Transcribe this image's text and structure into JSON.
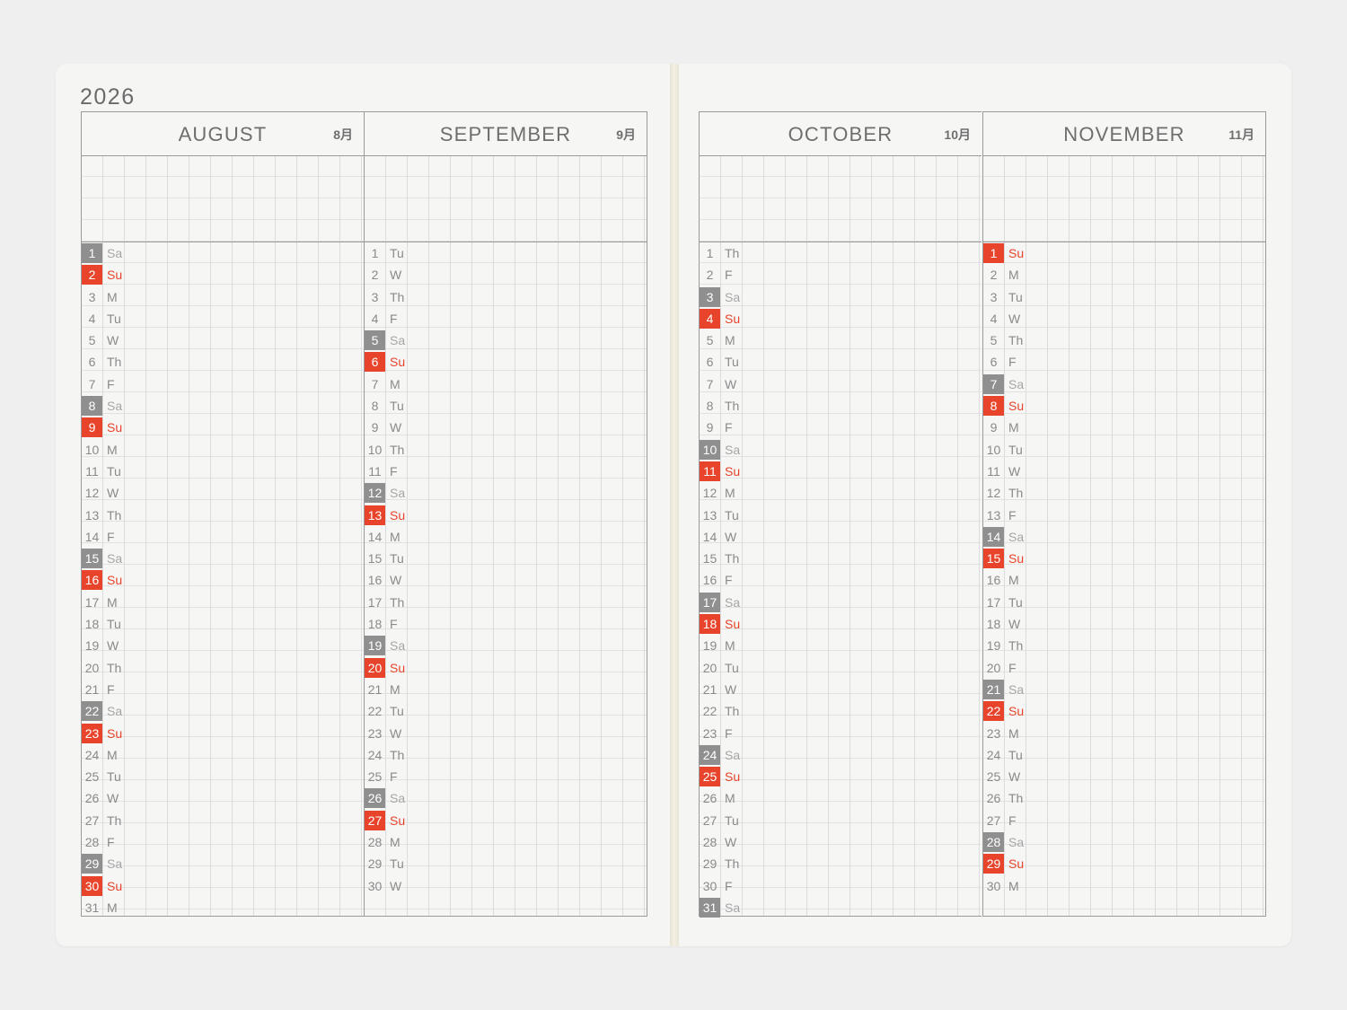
{
  "year": "2026",
  "colors": {
    "sunday": "#e8442b",
    "saturday": "#8f8f8f",
    "grid": "#dcdcdc",
    "rule": "#9a9a9a"
  },
  "months": [
    {
      "name": "AUGUST",
      "jp": "8月",
      "days": [
        {
          "d": "1",
          "w": "Sa"
        },
        {
          "d": "2",
          "w": "Su"
        },
        {
          "d": "3",
          "w": "M"
        },
        {
          "d": "4",
          "w": "Tu"
        },
        {
          "d": "5",
          "w": "W"
        },
        {
          "d": "6",
          "w": "Th"
        },
        {
          "d": "7",
          "w": "F"
        },
        {
          "d": "8",
          "w": "Sa"
        },
        {
          "d": "9",
          "w": "Su"
        },
        {
          "d": "10",
          "w": "M"
        },
        {
          "d": "11",
          "w": "Tu"
        },
        {
          "d": "12",
          "w": "W"
        },
        {
          "d": "13",
          "w": "Th"
        },
        {
          "d": "14",
          "w": "F"
        },
        {
          "d": "15",
          "w": "Sa"
        },
        {
          "d": "16",
          "w": "Su"
        },
        {
          "d": "17",
          "w": "M"
        },
        {
          "d": "18",
          "w": "Tu"
        },
        {
          "d": "19",
          "w": "W"
        },
        {
          "d": "20",
          "w": "Th"
        },
        {
          "d": "21",
          "w": "F"
        },
        {
          "d": "22",
          "w": "Sa"
        },
        {
          "d": "23",
          "w": "Su"
        },
        {
          "d": "24",
          "w": "M"
        },
        {
          "d": "25",
          "w": "Tu"
        },
        {
          "d": "26",
          "w": "W"
        },
        {
          "d": "27",
          "w": "Th"
        },
        {
          "d": "28",
          "w": "F"
        },
        {
          "d": "29",
          "w": "Sa"
        },
        {
          "d": "30",
          "w": "Su"
        },
        {
          "d": "31",
          "w": "M"
        }
      ]
    },
    {
      "name": "SEPTEMBER",
      "jp": "9月",
      "days": [
        {
          "d": "1",
          "w": "Tu"
        },
        {
          "d": "2",
          "w": "W"
        },
        {
          "d": "3",
          "w": "Th"
        },
        {
          "d": "4",
          "w": "F"
        },
        {
          "d": "5",
          "w": "Sa"
        },
        {
          "d": "6",
          "w": "Su"
        },
        {
          "d": "7",
          "w": "M"
        },
        {
          "d": "8",
          "w": "Tu"
        },
        {
          "d": "9",
          "w": "W"
        },
        {
          "d": "10",
          "w": "Th"
        },
        {
          "d": "11",
          "w": "F"
        },
        {
          "d": "12",
          "w": "Sa"
        },
        {
          "d": "13",
          "w": "Su"
        },
        {
          "d": "14",
          "w": "M"
        },
        {
          "d": "15",
          "w": "Tu"
        },
        {
          "d": "16",
          "w": "W"
        },
        {
          "d": "17",
          "w": "Th"
        },
        {
          "d": "18",
          "w": "F"
        },
        {
          "d": "19",
          "w": "Sa"
        },
        {
          "d": "20",
          "w": "Su"
        },
        {
          "d": "21",
          "w": "M"
        },
        {
          "d": "22",
          "w": "Tu"
        },
        {
          "d": "23",
          "w": "W"
        },
        {
          "d": "24",
          "w": "Th"
        },
        {
          "d": "25",
          "w": "F"
        },
        {
          "d": "26",
          "w": "Sa"
        },
        {
          "d": "27",
          "w": "Su"
        },
        {
          "d": "28",
          "w": "M"
        },
        {
          "d": "29",
          "w": "Tu"
        },
        {
          "d": "30",
          "w": "W"
        }
      ]
    },
    {
      "name": "OCTOBER",
      "jp": "10月",
      "days": [
        {
          "d": "1",
          "w": "Th"
        },
        {
          "d": "2",
          "w": "F"
        },
        {
          "d": "3",
          "w": "Sa"
        },
        {
          "d": "4",
          "w": "Su"
        },
        {
          "d": "5",
          "w": "M"
        },
        {
          "d": "6",
          "w": "Tu"
        },
        {
          "d": "7",
          "w": "W"
        },
        {
          "d": "8",
          "w": "Th"
        },
        {
          "d": "9",
          "w": "F"
        },
        {
          "d": "10",
          "w": "Sa"
        },
        {
          "d": "11",
          "w": "Su"
        },
        {
          "d": "12",
          "w": "M"
        },
        {
          "d": "13",
          "w": "Tu"
        },
        {
          "d": "14",
          "w": "W"
        },
        {
          "d": "15",
          "w": "Th"
        },
        {
          "d": "16",
          "w": "F"
        },
        {
          "d": "17",
          "w": "Sa"
        },
        {
          "d": "18",
          "w": "Su"
        },
        {
          "d": "19",
          "w": "M"
        },
        {
          "d": "20",
          "w": "Tu"
        },
        {
          "d": "21",
          "w": "W"
        },
        {
          "d": "22",
          "w": "Th"
        },
        {
          "d": "23",
          "w": "F"
        },
        {
          "d": "24",
          "w": "Sa"
        },
        {
          "d": "25",
          "w": "Su"
        },
        {
          "d": "26",
          "w": "M"
        },
        {
          "d": "27",
          "w": "Tu"
        },
        {
          "d": "28",
          "w": "W"
        },
        {
          "d": "29",
          "w": "Th"
        },
        {
          "d": "30",
          "w": "F"
        },
        {
          "d": "31",
          "w": "Sa"
        }
      ]
    },
    {
      "name": "NOVEMBER",
      "jp": "11月",
      "days": [
        {
          "d": "1",
          "w": "Su"
        },
        {
          "d": "2",
          "w": "M"
        },
        {
          "d": "3",
          "w": "Tu"
        },
        {
          "d": "4",
          "w": "W"
        },
        {
          "d": "5",
          "w": "Th"
        },
        {
          "d": "6",
          "w": "F"
        },
        {
          "d": "7",
          "w": "Sa"
        },
        {
          "d": "8",
          "w": "Su"
        },
        {
          "d": "9",
          "w": "M"
        },
        {
          "d": "10",
          "w": "Tu"
        },
        {
          "d": "11",
          "w": "W"
        },
        {
          "d": "12",
          "w": "Th"
        },
        {
          "d": "13",
          "w": "F"
        },
        {
          "d": "14",
          "w": "Sa"
        },
        {
          "d": "15",
          "w": "Su"
        },
        {
          "d": "16",
          "w": "M"
        },
        {
          "d": "17",
          "w": "Tu"
        },
        {
          "d": "18",
          "w": "W"
        },
        {
          "d": "19",
          "w": "Th"
        },
        {
          "d": "20",
          "w": "F"
        },
        {
          "d": "21",
          "w": "Sa"
        },
        {
          "d": "22",
          "w": "Su"
        },
        {
          "d": "23",
          "w": "M"
        },
        {
          "d": "24",
          "w": "Tu"
        },
        {
          "d": "25",
          "w": "W"
        },
        {
          "d": "26",
          "w": "Th"
        },
        {
          "d": "27",
          "w": "F"
        },
        {
          "d": "28",
          "w": "Sa"
        },
        {
          "d": "29",
          "w": "Su"
        },
        {
          "d": "30",
          "w": "M"
        }
      ]
    }
  ]
}
